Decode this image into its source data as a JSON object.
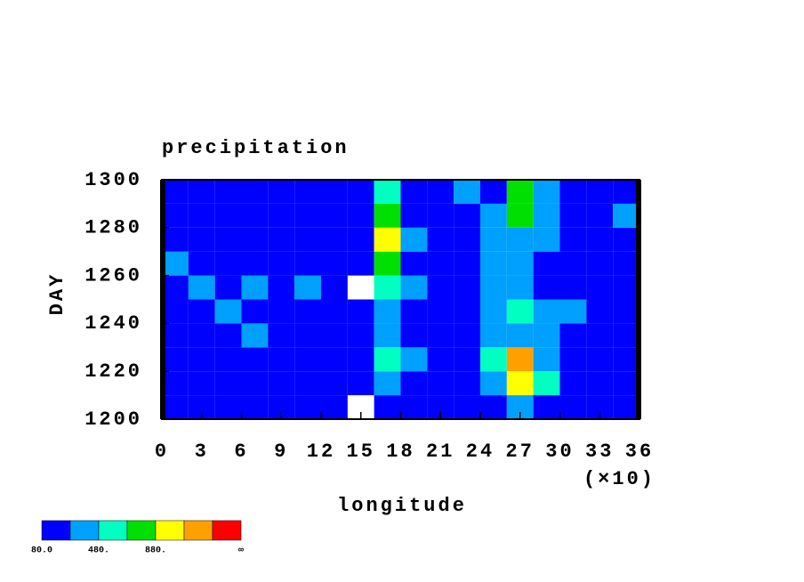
{
  "chart_data": {
    "type": "heatmap",
    "title": "precipitation",
    "xlabel": "longitude",
    "ylabel": "DAY",
    "x_multiplier": "(×10)",
    "xlim": [
      0,
      360
    ],
    "ylim": [
      1200,
      1300
    ],
    "xticks": [
      {
        "value": 0,
        "label": "0"
      },
      {
        "value": 30,
        "label": "3"
      },
      {
        "value": 60,
        "label": "6"
      },
      {
        "value": 90,
        "label": "9"
      },
      {
        "value": 120,
        "label": "12"
      },
      {
        "value": 150,
        "label": "15"
      },
      {
        "value": 180,
        "label": "18"
      },
      {
        "value": 210,
        "label": "21"
      },
      {
        "value": 240,
        "label": "24"
      },
      {
        "value": 270,
        "label": "27"
      },
      {
        "value": 300,
        "label": "30"
      },
      {
        "value": 330,
        "label": "33"
      },
      {
        "value": 360,
        "label": "36"
      }
    ],
    "yticks": [
      1200,
      1220,
      1240,
      1260,
      1280,
      1300
    ],
    "x": [
      10,
      30,
      50,
      70,
      90,
      110,
      130,
      150,
      170,
      190,
      210,
      230,
      250,
      270,
      290,
      310,
      330,
      350
    ],
    "y": [
      1205,
      1215,
      1225,
      1235,
      1245,
      1255,
      1265,
      1275,
      1285,
      1295
    ],
    "z": [
      [
        150,
        120,
        200,
        100,
        90,
        110,
        80,
        60,
        200,
        150,
        120,
        100,
        180,
        300,
        250,
        150,
        100,
        200
      ],
      [
        200,
        150,
        120,
        180,
        140,
        100,
        120,
        100,
        350,
        250,
        150,
        200,
        350,
        900,
        500,
        200,
        150,
        180
      ],
      [
        180,
        200,
        100,
        150,
        250,
        120,
        90,
        150,
        500,
        300,
        200,
        150,
        600,
        1100,
        400,
        250,
        200,
        150
      ],
      [
        250,
        150,
        200,
        300,
        200,
        180,
        150,
        100,
        300,
        200,
        250,
        180,
        300,
        400,
        300,
        250,
        200,
        150
      ],
      [
        200,
        250,
        300,
        200,
        250,
        200,
        200,
        150,
        400,
        250,
        200,
        150,
        400,
        500,
        450,
        300,
        150,
        200
      ],
      [
        250,
        300,
        200,
        350,
        250,
        300,
        250,
        60,
        600,
        300,
        200,
        200,
        300,
        350,
        250,
        200,
        250,
        200
      ],
      [
        300,
        200,
        150,
        200,
        200,
        150,
        100,
        80,
        700,
        250,
        150,
        200,
        350,
        300,
        200,
        250,
        200,
        250
      ],
      [
        200,
        150,
        200,
        250,
        150,
        100,
        150,
        120,
        1000,
        300,
        200,
        250,
        400,
        350,
        300,
        200,
        200,
        250
      ],
      [
        250,
        200,
        200,
        150,
        100,
        150,
        120,
        100,
        700,
        250,
        150,
        100,
        350,
        800,
        400,
        250,
        200,
        300
      ],
      [
        200,
        250,
        150,
        100,
        150,
        120,
        100,
        100,
        600,
        200,
        150,
        300,
        200,
        700,
        300,
        150,
        200,
        250
      ]
    ],
    "colorbar": {
      "colors": [
        "#0000ff",
        "#00a0ff",
        "#00ffc0",
        "#00e000",
        "#ffff00",
        "#ffa000",
        "#ff0000"
      ],
      "ticks": [
        {
          "value": 80,
          "label": "80.0"
        },
        {
          "value": 480,
          "label": "480."
        },
        {
          "value": 880,
          "label": "880."
        },
        {
          "value": null,
          "label": "∞"
        }
      ]
    }
  }
}
